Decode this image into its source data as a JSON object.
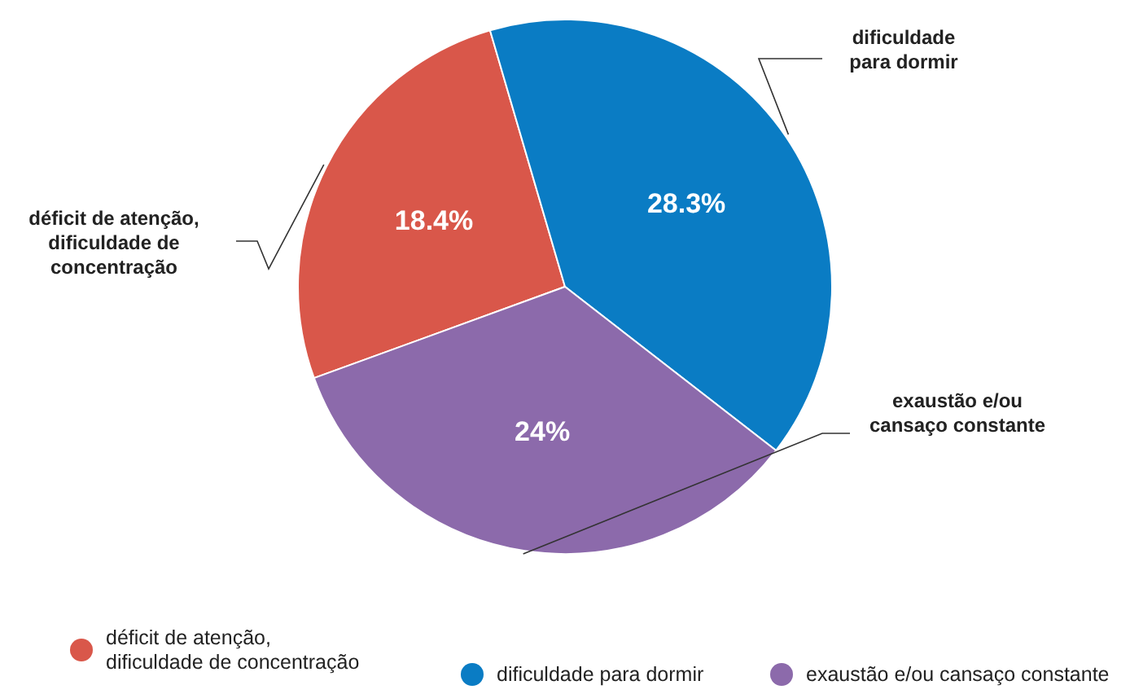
{
  "chart_data": {
    "type": "pie",
    "categories": [
      "déficit de atenção, dificuldade de concentração",
      "dificuldade para dormir",
      "exaustão e/ou cansaço constante"
    ],
    "values": [
      18.4,
      28.3,
      24
    ],
    "colors": [
      "#d9574a",
      "#0a7cc4",
      "#8c6aab"
    ],
    "value_labels": [
      "18.4%",
      "28.3%",
      "24%"
    ],
    "legend": "bottom"
  }
}
